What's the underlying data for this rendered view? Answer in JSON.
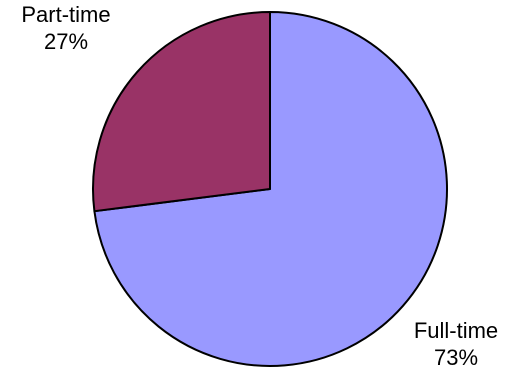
{
  "chart_data": {
    "type": "pie",
    "title": "",
    "categories": [
      "Full-time",
      "Part-time"
    ],
    "values": [
      73,
      27
    ],
    "value_labels": [
      "73%",
      "27%"
    ],
    "colors": [
      "#9999ff",
      "#993366"
    ],
    "start": "12 o'clock",
    "direction": "clockwise",
    "legend": "none"
  }
}
